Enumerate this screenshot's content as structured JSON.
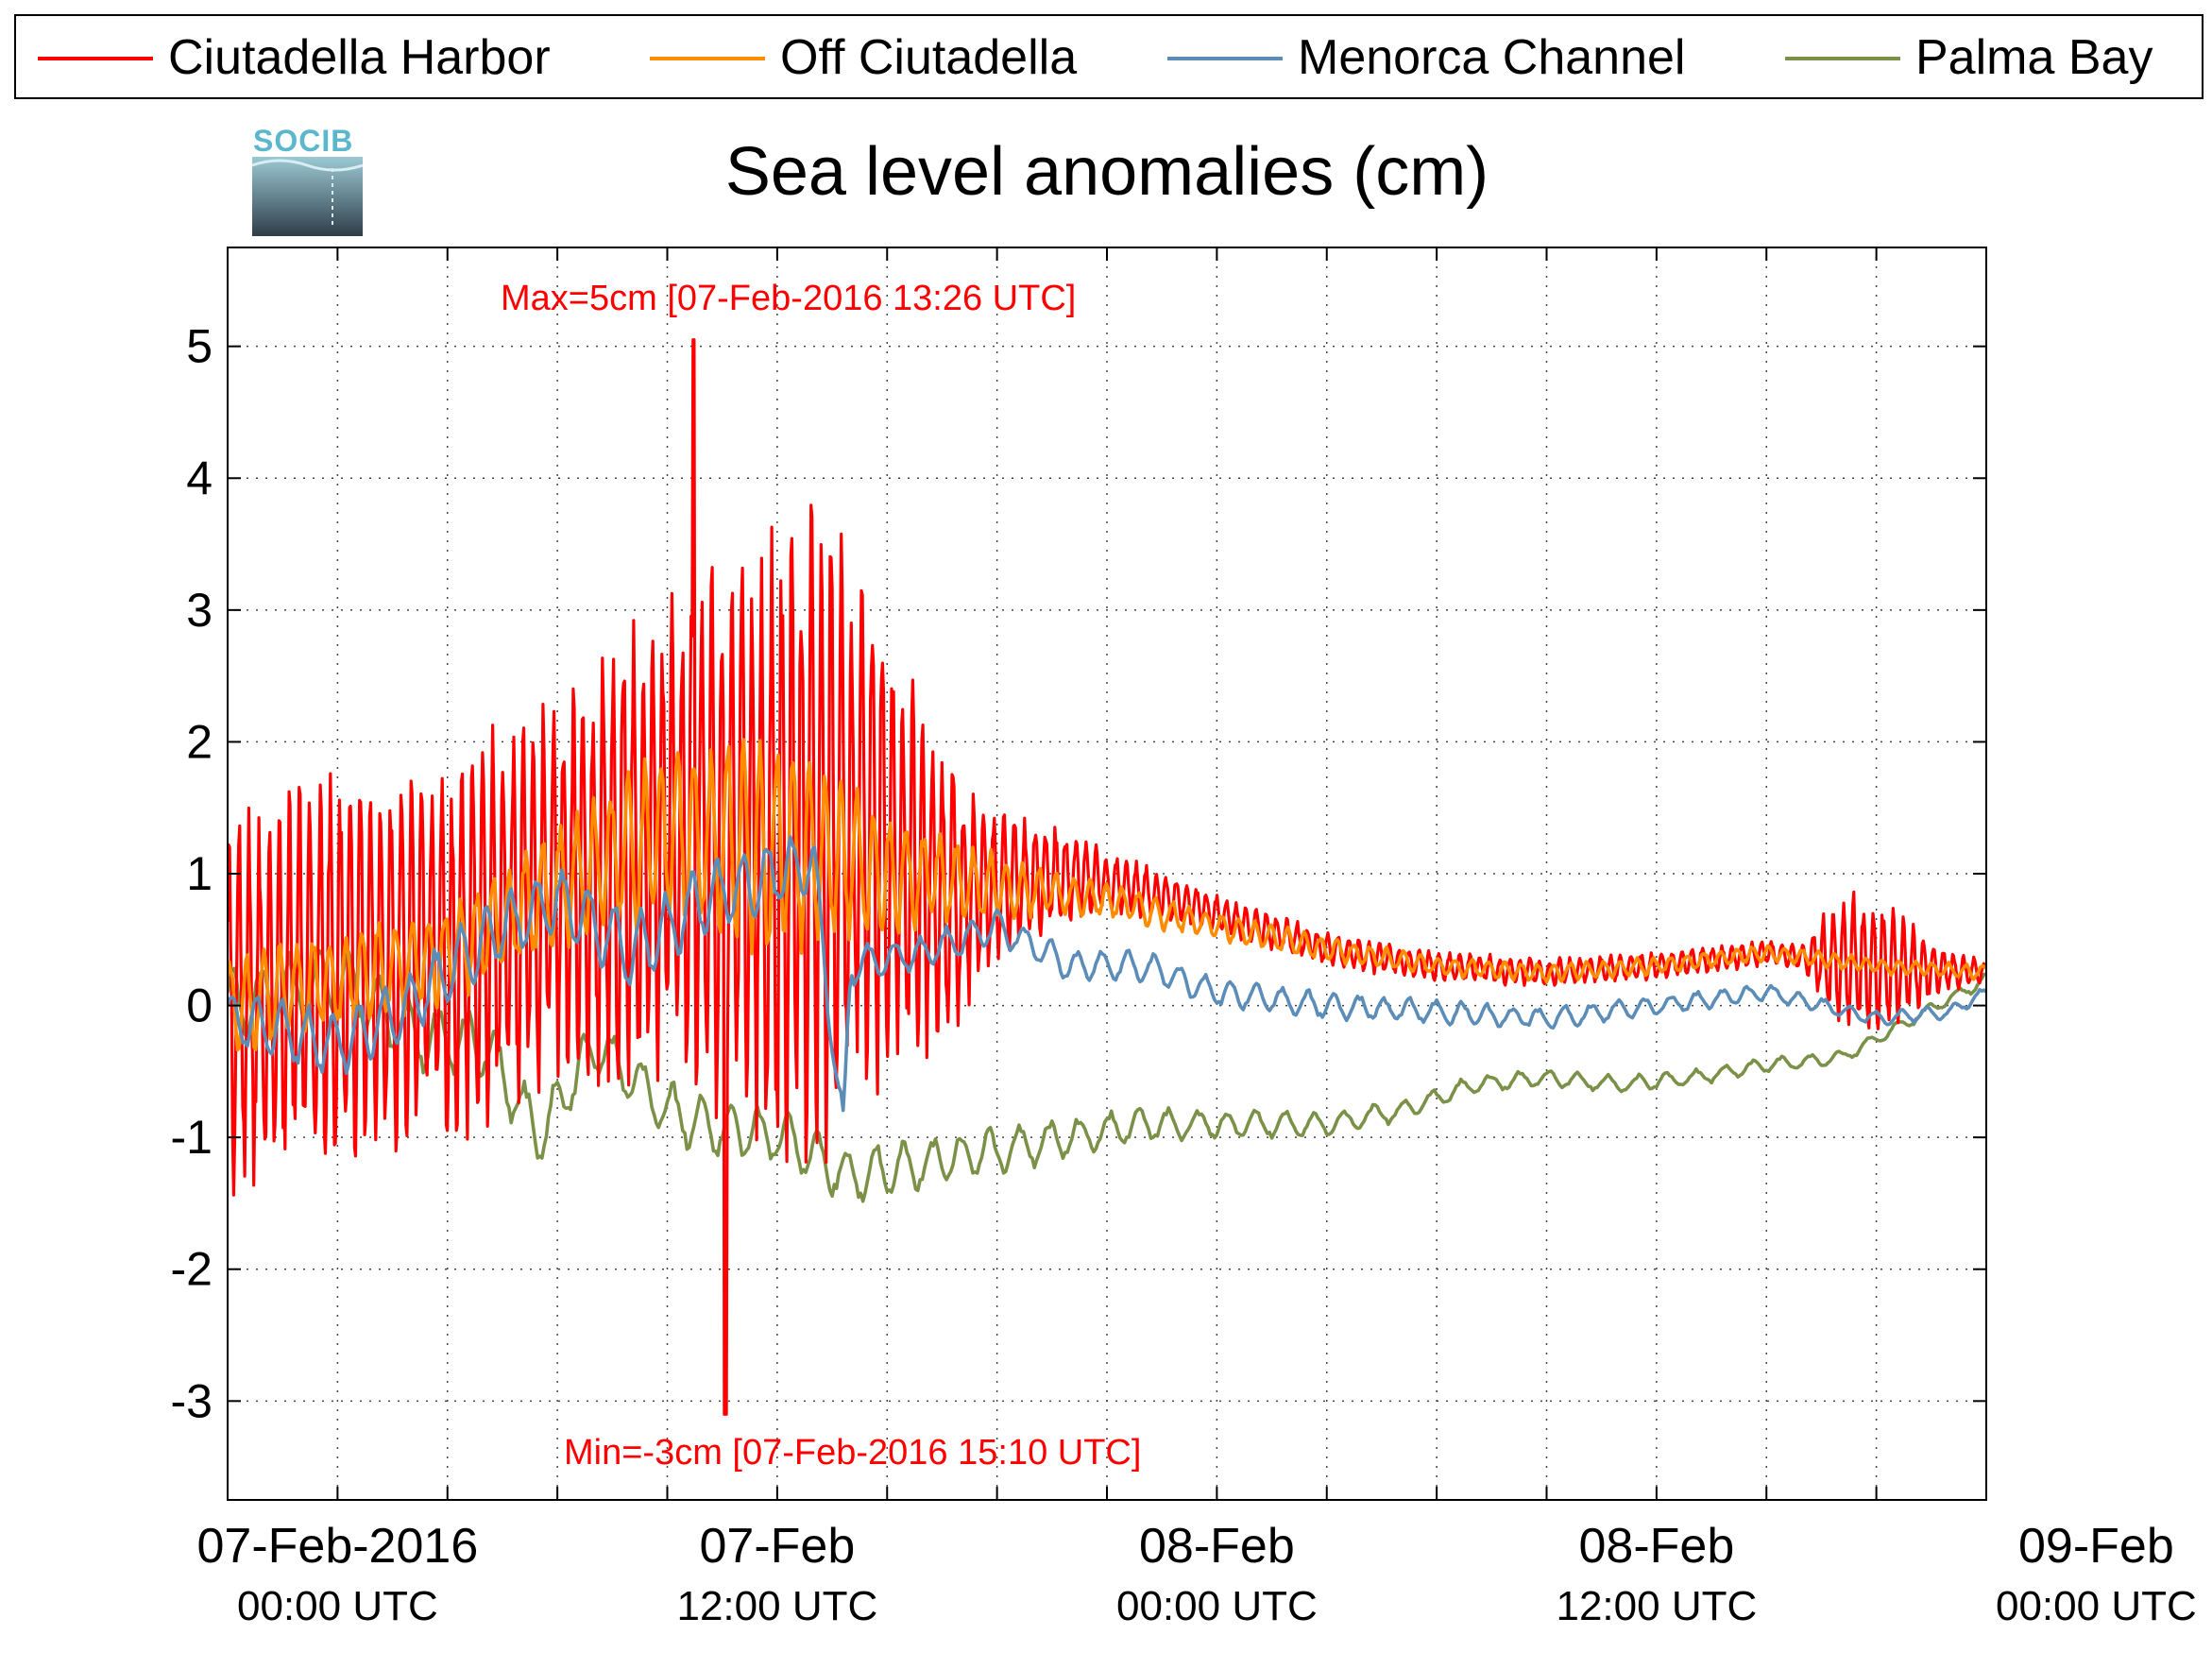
{
  "chart_data": {
    "type": "line",
    "title": "Sea level anomalies (cm)",
    "logo_text": "SOCIB",
    "xlabel": "",
    "ylabel": "",
    "ylim": [
      -3.75,
      5.75
    ],
    "xlim_hours": [
      -6,
      90
    ],
    "yticks": [
      -3,
      -2,
      -1,
      0,
      1,
      2,
      3,
      4,
      5
    ],
    "ytick_labels": [
      "-3",
      "-2",
      "-1",
      "0",
      "1",
      "2",
      "3",
      "4",
      "5"
    ],
    "xticks": [
      {
        "hours": 0,
        "line1": "07-Feb-2016",
        "line2": "00:00 UTC"
      },
      {
        "hours": 24,
        "line1": "07-Feb",
        "line2": "12:00 UTC"
      },
      {
        "hours": 48,
        "line1": "08-Feb",
        "line2": "00:00 UTC"
      },
      {
        "hours": 72,
        "line1": "08-Feb",
        "line2": "12:00 UTC"
      },
      {
        "hours": 96,
        "line1": "09-Feb",
        "line2": "00:00 UTC"
      }
    ],
    "grid": true,
    "legend_position": "top",
    "annotations": [
      {
        "text": "Max=5cm [07-Feb-2016 13:26 UTC]",
        "color": "#ff0000"
      },
      {
        "text": "Min=-3cm [07-Feb-2016 15:10 UTC]",
        "color": "#ff0000"
      }
    ],
    "series": [
      {
        "name": "Ciutadella Harbor",
        "color": "#ff0000",
        "kind": "harbor",
        "keyframes": [
          [
            -6,
            0
          ],
          [
            0,
            0.3
          ],
          [
            6,
            0.4
          ],
          [
            12,
            0.9
          ],
          [
            18,
            1.3
          ],
          [
            24,
            1.2
          ],
          [
            27,
            1.4
          ],
          [
            30,
            1.2
          ],
          [
            33,
            0.8
          ],
          [
            36,
            0.9
          ],
          [
            40,
            1.0
          ],
          [
            46,
            0.8
          ],
          [
            50,
            0.6
          ],
          [
            55,
            0.4
          ],
          [
            60,
            0.3
          ],
          [
            66,
            0.25
          ],
          [
            72,
            0.3
          ],
          [
            78,
            0.4
          ],
          [
            84,
            0.3
          ],
          [
            90,
            0.25
          ]
        ],
        "amplitude": [
          [
            -6,
            1.5
          ],
          [
            0,
            1.6
          ],
          [
            6,
            1.5
          ],
          [
            12,
            1.6
          ],
          [
            18,
            2.0
          ],
          [
            22,
            2.4
          ],
          [
            24,
            2.6
          ],
          [
            27,
            2.6
          ],
          [
            30,
            1.8
          ],
          [
            36,
            0.6
          ],
          [
            42,
            0.25
          ],
          [
            48,
            0.15
          ],
          [
            60,
            0.12
          ],
          [
            80,
            0.1
          ],
          [
            82,
            0.6
          ],
          [
            85,
            0.5
          ],
          [
            88,
            0.15
          ],
          [
            90,
            0.1
          ]
        ]
      },
      {
        "name": "Off Ciutadella",
        "color": "#ff8c00",
        "kind": "off",
        "keyframes": [
          [
            -6,
            0
          ],
          [
            0,
            0.2
          ],
          [
            6,
            0.4
          ],
          [
            12,
            0.9
          ],
          [
            18,
            1.3
          ],
          [
            24,
            1.2
          ],
          [
            30,
            1.0
          ],
          [
            36,
            0.9
          ],
          [
            42,
            0.8
          ],
          [
            48,
            0.6
          ],
          [
            55,
            0.4
          ],
          [
            60,
            0.3
          ],
          [
            66,
            0.25
          ],
          [
            72,
            0.3
          ],
          [
            78,
            0.4
          ],
          [
            84,
            0.3
          ],
          [
            90,
            0.25
          ]
        ],
        "amplitude": [
          [
            -6,
            0.4
          ],
          [
            6,
            0.4
          ],
          [
            12,
            0.5
          ],
          [
            18,
            0.7
          ],
          [
            24,
            0.9
          ],
          [
            27,
            0.7
          ],
          [
            32,
            0.4
          ],
          [
            40,
            0.15
          ],
          [
            60,
            0.08
          ],
          [
            90,
            0.06
          ]
        ]
      },
      {
        "name": "Menorca Channel",
        "color": "#5b8db8",
        "kind": "channel",
        "keyframes": [
          [
            -6,
            -0.1
          ],
          [
            0,
            -0.3
          ],
          [
            4,
            0.0
          ],
          [
            8,
            0.5
          ],
          [
            12,
            0.8
          ],
          [
            16,
            0.4
          ],
          [
            20,
            0.8
          ],
          [
            24,
            1.0
          ],
          [
            26,
            1.1
          ],
          [
            27.6,
            -1.0
          ],
          [
            28,
            0.3
          ],
          [
            32,
            0.4
          ],
          [
            36,
            0.6
          ],
          [
            40,
            0.3
          ],
          [
            44,
            0.3
          ],
          [
            48,
            0.1
          ],
          [
            54,
            0.0
          ],
          [
            60,
            -0.05
          ],
          [
            66,
            -0.1
          ],
          [
            72,
            0.0
          ],
          [
            78,
            0.1
          ],
          [
            84,
            -0.1
          ],
          [
            88,
            -0.05
          ],
          [
            90,
            0.1
          ]
        ],
        "amplitude": [
          [
            -6,
            0.25
          ],
          [
            12,
            0.3
          ],
          [
            24,
            0.3
          ],
          [
            30,
            0.15
          ],
          [
            90,
            0.05
          ]
        ]
      },
      {
        "name": "Palma Bay",
        "color": "#7b9147",
        "kind": "palma",
        "keyframes": [
          [
            -6,
            0
          ],
          [
            0,
            0.2
          ],
          [
            4,
            -0.2
          ],
          [
            8,
            -0.3
          ],
          [
            11,
            -1.0
          ],
          [
            14,
            -0.3
          ],
          [
            18,
            -0.8
          ],
          [
            20,
            -0.9
          ],
          [
            24,
            -1.0
          ],
          [
            28,
            -1.3
          ],
          [
            32,
            -1.2
          ],
          [
            36,
            -1.1
          ],
          [
            40,
            -1.0
          ],
          [
            44,
            -0.9
          ],
          [
            48,
            -0.9
          ],
          [
            54,
            -0.9
          ],
          [
            58,
            -0.8
          ],
          [
            62,
            -0.6
          ],
          [
            66,
            -0.55
          ],
          [
            70,
            -0.6
          ],
          [
            74,
            -0.55
          ],
          [
            78,
            -0.45
          ],
          [
            82,
            -0.4
          ],
          [
            86,
            -0.1
          ],
          [
            90,
            0.2
          ]
        ],
        "amplitude": [
          [
            -6,
            0.3
          ],
          [
            4,
            0.3
          ],
          [
            12,
            0.25
          ],
          [
            24,
            0.25
          ],
          [
            36,
            0.2
          ],
          [
            48,
            0.12
          ],
          [
            60,
            0.08
          ],
          [
            90,
            0.05
          ]
        ]
      }
    ]
  }
}
